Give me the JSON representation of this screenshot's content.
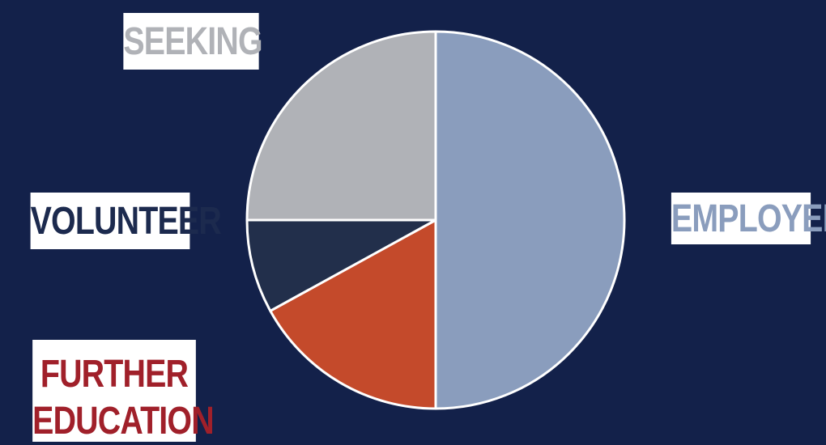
{
  "chart_data": {
    "type": "pie",
    "slices": [
      {
        "label": "EMPLOYED",
        "value": 50,
        "color": "#8a9dbd",
        "label_color": "#8a9dbd"
      },
      {
        "label": "FURTHER EDUCATION",
        "value": 17,
        "color": "#c44a2b",
        "label_color": "#a0202a"
      },
      {
        "label": "VOLUNTEER",
        "value": 8,
        "color": "#222f4b",
        "label_color": "#1c2a4e"
      },
      {
        "label": "SEEKING",
        "value": 25,
        "color": "#b0b2b7",
        "label_color": "#b0b2b7"
      }
    ]
  },
  "labels": {
    "seeking": "SEEKING",
    "volunteer": "VOLUNTEER",
    "employed": "EMPLOYED",
    "further_line1": "FURTHER",
    "further_line2": "EDUCATION"
  },
  "colors": {
    "background": "#13214a",
    "slice_border": "#ffffff"
  }
}
